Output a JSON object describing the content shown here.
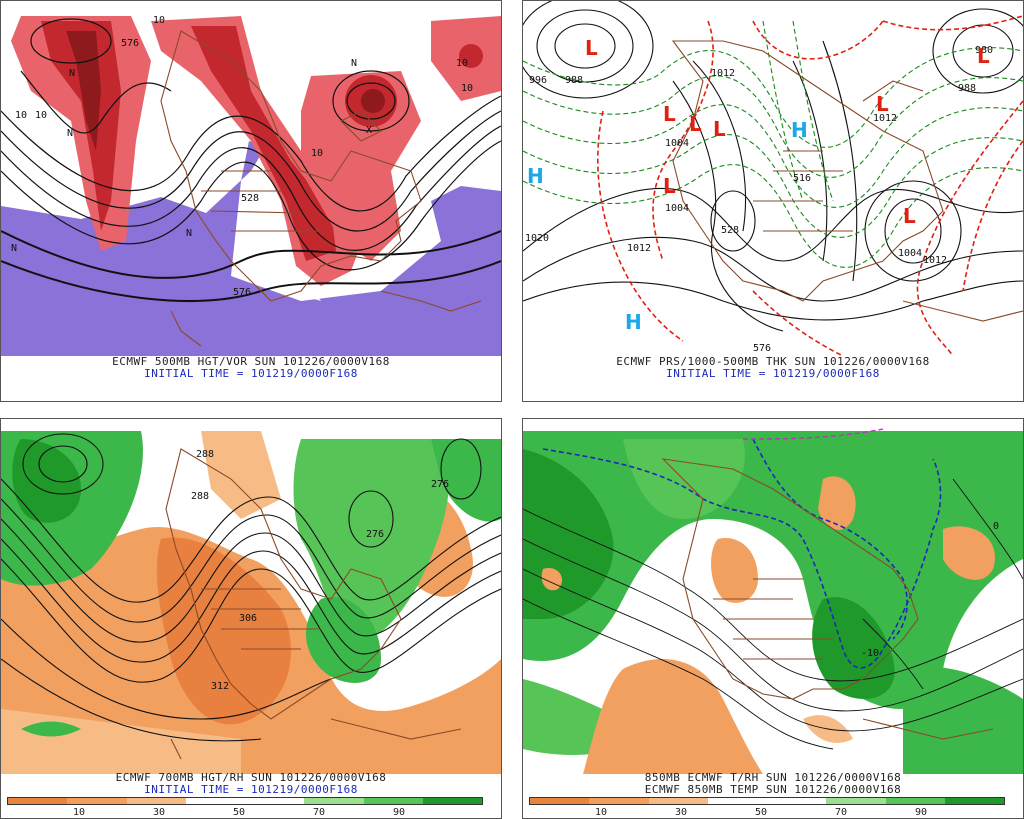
{
  "panels": {
    "p1": {
      "caption": "ECMWF 500MB HGT/VOR SUN 101226/0000V168",
      "init": "INITIAL TIME = 101219/0000F168",
      "labels": [
        "10",
        "10",
        "10",
        "N",
        "N",
        "N",
        "N",
        "10",
        "576",
        "576",
        "528",
        "N",
        "10",
        "10",
        "X"
      ]
    },
    "p2": {
      "caption": "ECMWF PRS/1000-500MB THK SUN 101226/0000V168",
      "init": "INITIAL TIME = 101219/0000F168",
      "labels": [
        "996",
        "988",
        "1004",
        "1004",
        "1012",
        "1020",
        "1012",
        "1004",
        "1012",
        "980",
        "988",
        "1012",
        "528",
        "516",
        "576",
        "L",
        "L",
        "L",
        "L",
        "L",
        "L",
        "L",
        "H",
        "H",
        "H"
      ]
    },
    "p3": {
      "caption": "ECMWF 700MB HGT/RH SUN 101226/0000V168",
      "init": "INITIAL TIME = 101219/0000F168",
      "labels": [
        "288",
        "288",
        "276",
        "276",
        "306",
        "312"
      ]
    },
    "p4": {
      "caption": "850MB ECMWF T/RH SUN 101226/0000V168",
      "init": "ECMWF 850MB TEMP SUN 101226/0000V168",
      "labels": [
        "-10",
        "0"
      ]
    }
  },
  "colorbar": {
    "ticks": [
      "10",
      "30",
      "50",
      "70",
      "90"
    ],
    "colors": [
      "#e8843c",
      "#f29e5c",
      "#f7bc86",
      "#ffffff",
      "#ffffff",
      "#9be08e",
      "#56c456",
      "#1f9a2a"
    ]
  },
  "colors": {
    "vorticity": "#d7343a",
    "negative_vort": "#8a72d8",
    "thickness_warm": "#e02010",
    "thickness_cold": "#1a8a1a",
    "dry": "#f2a060",
    "moist": "#3cb84a",
    "coast": "#8a4a2a"
  }
}
